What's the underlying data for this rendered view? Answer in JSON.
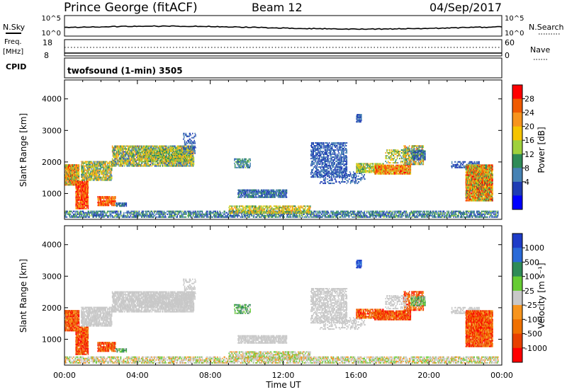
{
  "header": {
    "station": "Prince George (fitACF)",
    "beam": "Beam 12",
    "date": "04/Sep/2017"
  },
  "status_panels": {
    "nsky_label": "N.Sky",
    "nsky_ticks": [
      "10^5",
      "10^0"
    ],
    "nsearch_label": "N.Search",
    "nsearch_ticks": [
      "10^5",
      "10^0"
    ],
    "freq_label": "Freq.",
    "freq_unit": "[MHz]",
    "freq_ticks": [
      "18",
      "8"
    ],
    "nave_label": "Nave",
    "nave_ticks": [
      "60",
      "0"
    ],
    "cpid_label": "CPID",
    "cpid_value": "twofsound (1-min) 3505"
  },
  "chart_data": [
    {
      "type": "heatmap",
      "panel": "power",
      "ylabel": "Slant Range [km]",
      "yticks": [
        "4000",
        "3000",
        "2000",
        "1000"
      ],
      "ylim": [
        180,
        4600
      ],
      "xlim_hours": [
        0,
        24
      ],
      "colorbar_label": "Power [dB]",
      "colorbar_ticks": [
        "28",
        "24",
        "20",
        "16",
        "12",
        "8",
        "4"
      ],
      "colorbar_colors": [
        "#ff0000",
        "#f05a00",
        "#f7941d",
        "#f5c400",
        "#9fd13c",
        "#2e8b57",
        "#4682b4",
        "#1e3cb4",
        "#0000ff"
      ]
    },
    {
      "type": "heatmap",
      "panel": "velocity",
      "ylabel": "Slant Range [km]",
      "yticks": [
        "4000",
        "3000",
        "2000",
        "1000"
      ],
      "ylim": [
        180,
        4600
      ],
      "xlim_hours": [
        0,
        24
      ],
      "colorbar_label": "Velocity [m s⁻¹]",
      "colorbar_ticks": [
        "1000",
        "500",
        "100",
        "25",
        "-25",
        "-100",
        "-500",
        "-1000"
      ],
      "colorbar_colors": [
        "#1e3cc8",
        "#2a6ad8",
        "#2e8b57",
        "#66cc33",
        "#c8c8c8",
        "#f7941d",
        "#f07000",
        "#e84000",
        "#ff0000"
      ]
    }
  ],
  "xaxis": {
    "ticks": [
      "00:00",
      "04:00",
      "08:00",
      "12:00",
      "16:00",
      "20:00",
      "00:00"
    ],
    "label": "Time UT"
  }
}
